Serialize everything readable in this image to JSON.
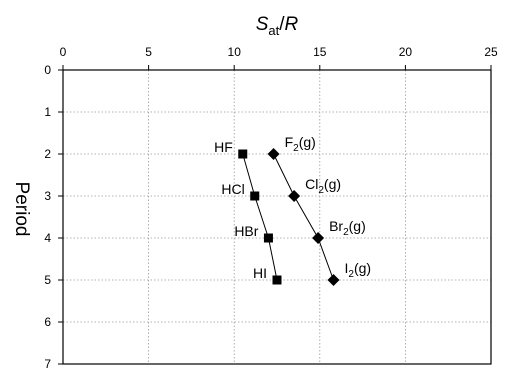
{
  "chart_data": {
    "type": "scatter",
    "x_title": {
      "main": "S",
      "sub": "at",
      "rest": "/",
      "italic2": "R"
    },
    "ylabel": "Period",
    "xlim": [
      0,
      25
    ],
    "ylim": [
      0,
      7
    ],
    "y_inverted": true,
    "x_ticks": [
      "0",
      "5",
      "10",
      "15",
      "20",
      "25"
    ],
    "y_ticks": [
      "0",
      "1",
      "2",
      "3",
      "4",
      "5",
      "6",
      "7"
    ],
    "x_tick_values": [
      0,
      5,
      10,
      15,
      20,
      25
    ],
    "y_tick_values": [
      0,
      1,
      2,
      3,
      4,
      5,
      6,
      7
    ],
    "grid": true,
    "series": [
      {
        "marker": "square",
        "points": [
          {
            "x": 10.5,
            "y": 2,
            "label": "HF",
            "side": "left"
          },
          {
            "x": 11.2,
            "y": 3,
            "label": "HCl",
            "side": "left"
          },
          {
            "x": 12.0,
            "y": 4,
            "label": "HBr",
            "side": "left"
          },
          {
            "x": 12.5,
            "y": 5,
            "label": "HI",
            "side": "left"
          }
        ]
      },
      {
        "marker": "diamond",
        "points": [
          {
            "x": 12.3,
            "y": 2,
            "label": "F",
            "sub": "2",
            "suffix": "(g)",
            "side": "right"
          },
          {
            "x": 13.5,
            "y": 3,
            "label": "Cl",
            "sub": "2",
            "suffix": "(g)",
            "side": "right"
          },
          {
            "x": 14.9,
            "y": 4,
            "label": "Br",
            "sub": "2",
            "suffix": "(g)",
            "side": "right"
          },
          {
            "x": 15.8,
            "y": 5,
            "label": "I",
            "sub": "2",
            "suffix": "(g)",
            "side": "right"
          }
        ]
      }
    ]
  }
}
